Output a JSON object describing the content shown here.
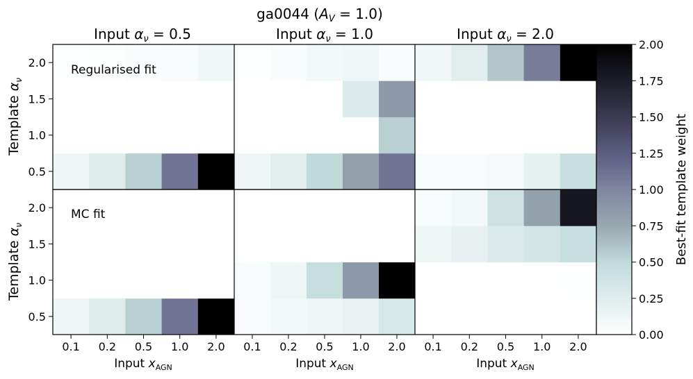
{
  "chart_data": {
    "type": "heatmap",
    "title_prefix": "ga0044 (",
    "title_math": "A",
    "title_sub": "V",
    "title_suffix": " = 1.0)",
    "column_titles": [
      {
        "prefix": "Input ",
        "alpha": "α",
        "sub": "ν",
        "suffix": " = 0.5"
      },
      {
        "prefix": "Input ",
        "alpha": "α",
        "sub": "ν",
        "suffix": " = 1.0"
      },
      {
        "prefix": "Input ",
        "alpha": "α",
        "sub": "ν",
        "suffix": " = 2.0"
      }
    ],
    "row_labels": [
      "Regularised fit",
      "MC fit"
    ],
    "ylabel_text": "Template ",
    "ylabel_alpha": "α",
    "ylabel_sub": "ν",
    "xlabel_text": "Input ",
    "xlabel_x": "x",
    "xlabel_sub": "AGN",
    "x_ticks": [
      "0.1",
      "0.2",
      "0.5",
      "1.0",
      "2.0"
    ],
    "y_ticks": [
      "0.5",
      "1.0",
      "1.5",
      "2.0"
    ],
    "colorbar": {
      "label": "Best-fit template weight",
      "min": 0.0,
      "max": 2.0,
      "ticks": [
        "0.00",
        "0.25",
        "0.50",
        "0.75",
        "1.00",
        "1.25",
        "1.50",
        "1.75",
        "2.00"
      ],
      "colormap": "bone_r"
    },
    "panels": [
      {
        "row": "Regularised fit",
        "input_alpha": 0.5,
        "values": [
          [
            0.15,
            0.28,
            0.55,
            1.1,
            2.0
          ],
          [
            0,
            0,
            0,
            0,
            0
          ],
          [
            0,
            0,
            0,
            0,
            0
          ],
          [
            0.02,
            0.03,
            0.05,
            0.06,
            0.12
          ]
        ]
      },
      {
        "row": "Regularised fit",
        "input_alpha": 1.0,
        "values": [
          [
            0.15,
            0.25,
            0.5,
            0.8,
            1.1
          ],
          [
            0,
            0,
            0,
            0,
            0.55
          ],
          [
            0,
            0,
            0,
            0.3,
            0.85
          ],
          [
            0.02,
            0.05,
            0.1,
            0.12,
            0.05
          ]
        ]
      },
      {
        "row": "Regularised fit",
        "input_alpha": 2.0,
        "values": [
          [
            0.05,
            0.06,
            0.09,
            0.22,
            0.45
          ],
          [
            0,
            0,
            0,
            0,
            0
          ],
          [
            0,
            0,
            0,
            0,
            0
          ],
          [
            0.12,
            0.25,
            0.6,
            1.05,
            2.0
          ]
        ]
      },
      {
        "row": "MC fit",
        "input_alpha": 0.5,
        "values": [
          [
            0.15,
            0.28,
            0.55,
            1.1,
            2.0
          ],
          [
            0,
            0,
            0,
            0,
            0
          ],
          [
            0,
            0,
            0,
            0,
            0
          ],
          [
            0,
            0,
            0,
            0,
            0
          ]
        ]
      },
      {
        "row": "MC fit",
        "input_alpha": 1.0,
        "values": [
          [
            0.06,
            0.1,
            0.13,
            0.18,
            0.33
          ],
          [
            0.06,
            0.15,
            0.45,
            0.85,
            2.0
          ],
          [
            0,
            0,
            0,
            0,
            0
          ],
          [
            0,
            0,
            0,
            0,
            0
          ]
        ]
      },
      {
        "row": "MC fit",
        "input_alpha": 2.0,
        "values": [
          [
            0,
            0,
            0,
            0,
            0
          ],
          [
            0,
            0,
            0,
            0,
            0.02
          ],
          [
            0.15,
            0.2,
            0.3,
            0.35,
            0.45
          ],
          [
            0.05,
            0.1,
            0.4,
            0.8,
            1.8
          ]
        ]
      }
    ]
  }
}
